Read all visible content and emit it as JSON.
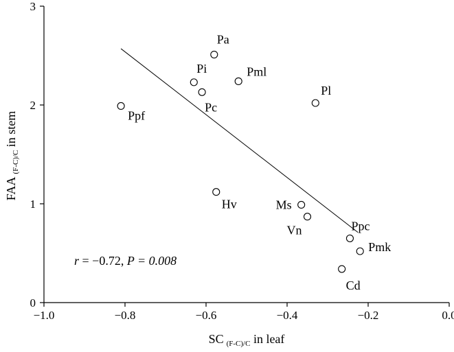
{
  "chart_data": {
    "type": "scatter",
    "xlim": [
      -1.0,
      0.0
    ],
    "ylim": [
      0,
      3
    ],
    "x_ticks": [
      "−1.0",
      "−0.8",
      "−0.6",
      "−0.4",
      "−0.2",
      "0.0"
    ],
    "y_ticks": [
      "0",
      "1",
      "2",
      "3"
    ],
    "xlabel": {
      "main": "SC",
      "sub": "(F-C)/C",
      "rest": " in leaf"
    },
    "ylabel": {
      "main": "FAA",
      "sub": "(F-C)/C",
      "rest": " in stem"
    },
    "grid": false,
    "points": [
      {
        "label": "Pa",
        "x": -0.58,
        "y": 2.51
      },
      {
        "label": "Pi",
        "x": -0.63,
        "y": 2.23
      },
      {
        "label": "Pml",
        "x": -0.52,
        "y": 2.24
      },
      {
        "label": "Pc",
        "x": -0.61,
        "y": 2.13
      },
      {
        "label": "Pl",
        "x": -0.33,
        "y": 2.02
      },
      {
        "label": "Ppf",
        "x": -0.81,
        "y": 1.99
      },
      {
        "label": "Hv",
        "x": -0.575,
        "y": 1.12
      },
      {
        "label": "Ms",
        "x": -0.365,
        "y": 0.99
      },
      {
        "label": "Vn",
        "x": -0.35,
        "y": 0.87
      },
      {
        "label": "Ppc",
        "x": -0.245,
        "y": 0.65
      },
      {
        "label": "Pmk",
        "x": -0.22,
        "y": 0.52
      },
      {
        "label": "Cd",
        "x": -0.265,
        "y": 0.34
      }
    ],
    "trendline": {
      "x": [
        -0.81,
        -0.225
      ],
      "y": [
        2.57,
        0.71
      ]
    },
    "annotation": {
      "r_symbol": "r",
      "r_text": " = −0.72, ",
      "p_symbol": "P",
      "p_text": " = 0.008"
    }
  }
}
